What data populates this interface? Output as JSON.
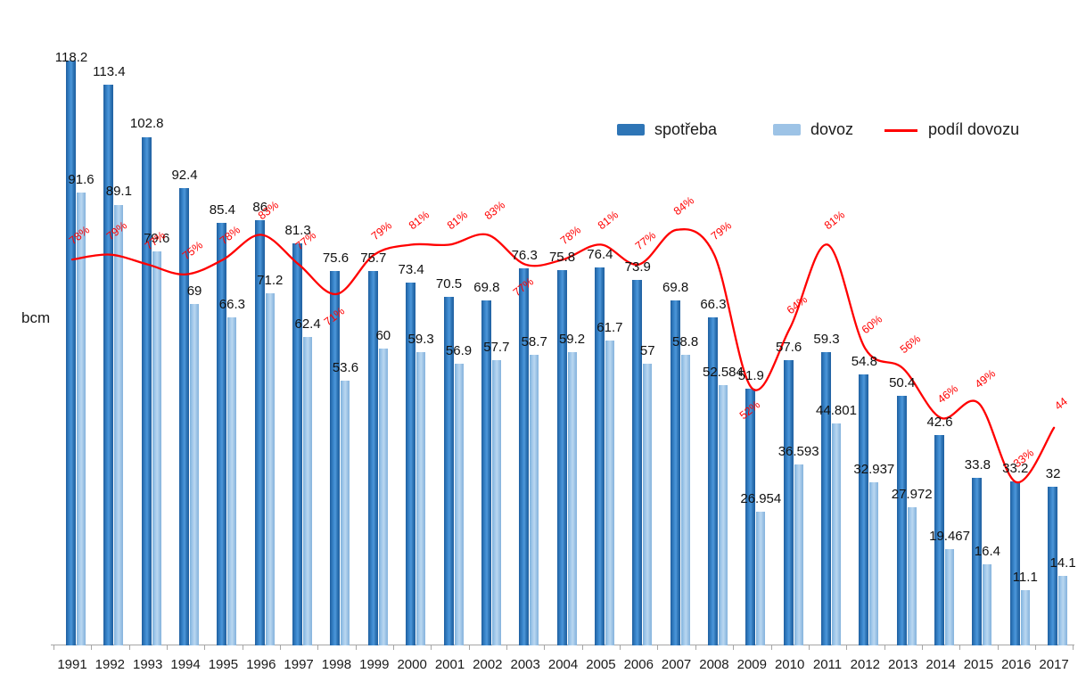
{
  "y_axis_unit": "bcm",
  "colors": {
    "axis": "#a6a6a6",
    "text": "#1a1a1a",
    "bar_label": "#111111"
  },
  "chart_data": {
    "type": "bar",
    "title": "",
    "xlabel": "",
    "ylabel": "bcm",
    "ylim": [
      0,
      130
    ],
    "grid": false,
    "legend_position": "top-right",
    "categories": [
      "1991",
      "1992",
      "1993",
      "1994",
      "1995",
      "1996",
      "1997",
      "1998",
      "1999",
      "2000",
      "2001",
      "2002",
      "2003",
      "2004",
      "2005",
      "2006",
      "2007",
      "2008",
      "2009",
      "2010",
      "2011",
      "2012",
      "2013",
      "2014",
      "2015",
      "2016",
      "2017"
    ],
    "series": [
      {
        "name": "spotřeba",
        "type": "bar",
        "color": "#2E75B6",
        "values": [
          118.2,
          113.4,
          102.8,
          92.4,
          85.4,
          86,
          81.3,
          75.6,
          75.7,
          73.4,
          70.5,
          69.8,
          76.3,
          75.8,
          76.4,
          73.9,
          69.8,
          66.3,
          51.9,
          57.6,
          59.3,
          54.8,
          50.4,
          42.6,
          33.8,
          33.2,
          32
        ],
        "labels": [
          "118.2",
          "113.4",
          "102.8",
          "92.4",
          "85.4",
          "86",
          "81.3",
          "75.6",
          "75.7",
          "73.4",
          "70.5",
          "69.8",
          "76.3",
          "75.8",
          "76.4",
          "73.9",
          "69.8",
          "66.3",
          "51.9",
          "57.6",
          "59.3",
          "54.8",
          "50.4",
          "42.6",
          "33.8",
          "33.2",
          "32"
        ]
      },
      {
        "name": "dovoz",
        "type": "bar",
        "color": "#9DC3E6",
        "values": [
          91.6,
          89.1,
          79.6,
          69,
          66.3,
          71.2,
          62.4,
          53.6,
          60,
          59.3,
          56.9,
          57.7,
          58.7,
          59.2,
          61.7,
          57,
          58.8,
          52.584,
          26.954,
          36.593,
          44.801,
          32.937,
          27.972,
          19.467,
          16.4,
          11.1,
          14.1
        ],
        "labels": [
          "91.6",
          "89.1",
          "79.6",
          "69",
          "66.3",
          "71.2",
          "62.4",
          "53.6",
          "60",
          "59.3",
          "56.9",
          "57.7",
          "58.7",
          "59.2",
          "61.7",
          "57",
          "58.8",
          "52.584",
          "26.954",
          "36.593",
          "44.801",
          "32.937",
          "27.972",
          "19.467",
          "16.4",
          "11.1",
          "14.1"
        ]
      },
      {
        "name": "podíl dovozu",
        "type": "line",
        "color": "#FF0000",
        "smooth": true,
        "values": [
          78,
          79,
          77,
          75,
          78,
          83,
          77,
          71,
          79,
          81,
          81,
          83,
          77,
          78,
          81,
          77,
          84,
          79,
          52,
          64,
          81,
          60,
          56,
          46,
          49,
          33,
          44
        ],
        "labels": [
          "78%",
          "79%",
          "77%",
          "75%",
          "78%",
          "83%",
          "77%",
          "71%",
          "79%",
          "81%",
          "81%",
          "83%",
          "77%",
          "78%",
          "81%",
          "77%",
          "84%",
          "79%",
          "52%",
          "64%",
          "81%",
          "60%",
          "56%",
          "46%",
          "49%",
          "33%",
          "44"
        ],
        "label_below_indices": [
          7,
          12,
          18
        ]
      }
    ]
  }
}
